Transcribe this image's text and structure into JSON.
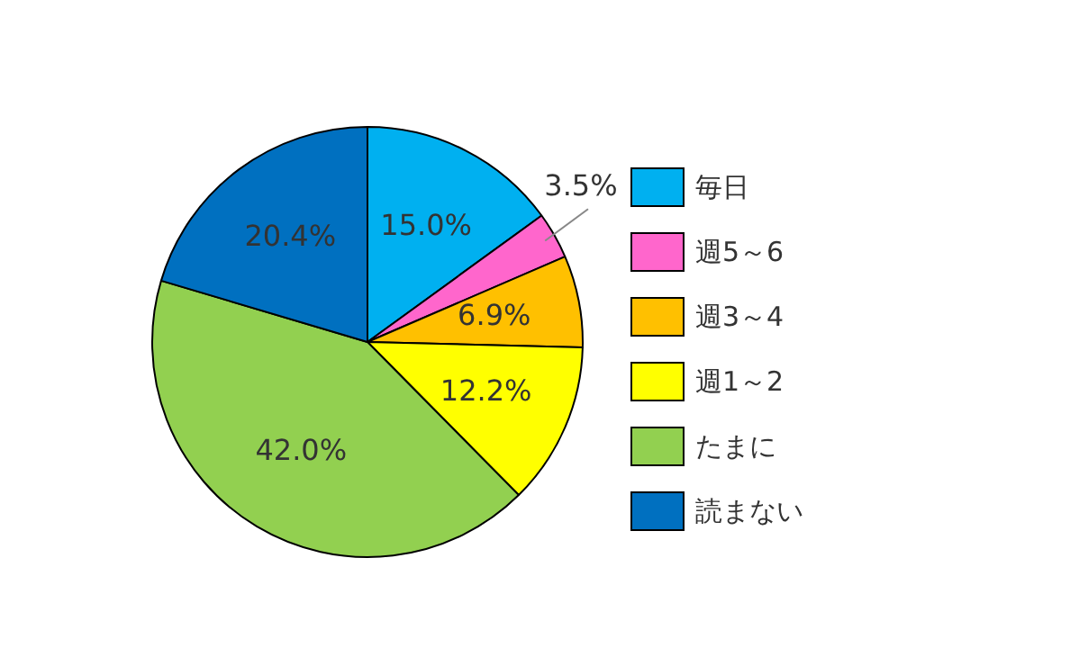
{
  "chart_data": {
    "type": "pie",
    "categories": [
      "毎日",
      "週5～6",
      "週3～4",
      "週1～2",
      "たまに",
      "読まない"
    ],
    "values": [
      15.0,
      3.5,
      6.9,
      12.2,
      42.0,
      20.4
    ],
    "colors": [
      "#00b0f0",
      "#ff66cc",
      "#ffc000",
      "#ffff00",
      "#92d050",
      "#0070c0"
    ],
    "value_labels": [
      "15.0%",
      "3.5%",
      "6.9%",
      "12.2%",
      "42.0%",
      "20.4%"
    ],
    "legend": "right"
  }
}
